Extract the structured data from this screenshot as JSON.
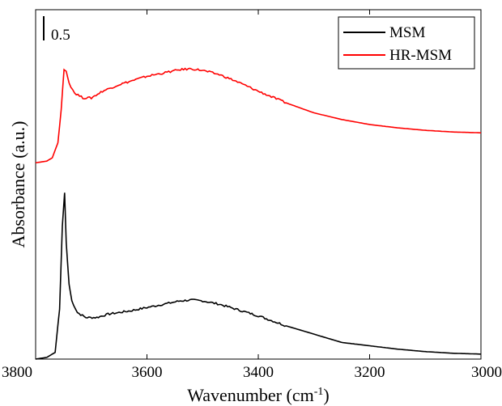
{
  "chart_data": {
    "type": "line",
    "xlabel_main": "Wavenumber (cm",
    "xlabel_sup": "-1",
    "xlabel_close": ")",
    "ylabel": "Absorbance (a.u.)",
    "xlim": [
      3800,
      3000
    ],
    "x_reversed": true,
    "x_ticks": [
      "3800",
      "3600",
      "3400",
      "3200",
      "3000"
    ],
    "ylim": [
      0,
      2.1
    ],
    "y_ticks_shown": false,
    "scale_bar": {
      "label": "0.5",
      "length": 0.5
    },
    "legend": {
      "placement": "top-right"
    },
    "series": [
      {
        "name": "MSM",
        "color": "#000000",
        "points": [
          [
            3800,
            0.0
          ],
          [
            3780,
            0.01
          ],
          [
            3765,
            0.04
          ],
          [
            3757,
            0.3
          ],
          [
            3752,
            0.8
          ],
          [
            3748,
            1.0
          ],
          [
            3745,
            0.7
          ],
          [
            3740,
            0.45
          ],
          [
            3735,
            0.35
          ],
          [
            3725,
            0.28
          ],
          [
            3710,
            0.25
          ],
          [
            3690,
            0.25
          ],
          [
            3670,
            0.27
          ],
          [
            3650,
            0.28
          ],
          [
            3630,
            0.29
          ],
          [
            3600,
            0.31
          ],
          [
            3570,
            0.33
          ],
          [
            3540,
            0.35
          ],
          [
            3520,
            0.355
          ],
          [
            3500,
            0.35
          ],
          [
            3470,
            0.33
          ],
          [
            3440,
            0.3
          ],
          [
            3400,
            0.26
          ],
          [
            3350,
            0.2
          ],
          [
            3300,
            0.15
          ],
          [
            3250,
            0.1
          ],
          [
            3200,
            0.08
          ],
          [
            3150,
            0.06
          ],
          [
            3100,
            0.045
          ],
          [
            3050,
            0.035
          ],
          [
            3000,
            0.03
          ]
        ]
      },
      {
        "name": "HR-MSM",
        "color": "#ff0000",
        "points": [
          [
            3800,
            1.18
          ],
          [
            3780,
            1.19
          ],
          [
            3770,
            1.21
          ],
          [
            3760,
            1.3
          ],
          [
            3754,
            1.5
          ],
          [
            3749,
            1.74
          ],
          [
            3745,
            1.73
          ],
          [
            3740,
            1.66
          ],
          [
            3730,
            1.6
          ],
          [
            3715,
            1.57
          ],
          [
            3700,
            1.57
          ],
          [
            3680,
            1.61
          ],
          [
            3650,
            1.65
          ],
          [
            3620,
            1.68
          ],
          [
            3600,
            1.7
          ],
          [
            3570,
            1.72
          ],
          [
            3540,
            1.74
          ],
          [
            3520,
            1.745
          ],
          [
            3500,
            1.735
          ],
          [
            3470,
            1.71
          ],
          [
            3440,
            1.67
          ],
          [
            3400,
            1.61
          ],
          [
            3350,
            1.54
          ],
          [
            3300,
            1.48
          ],
          [
            3250,
            1.44
          ],
          [
            3200,
            1.41
          ],
          [
            3150,
            1.39
          ],
          [
            3100,
            1.375
          ],
          [
            3050,
            1.365
          ],
          [
            3000,
            1.36
          ]
        ]
      }
    ]
  }
}
